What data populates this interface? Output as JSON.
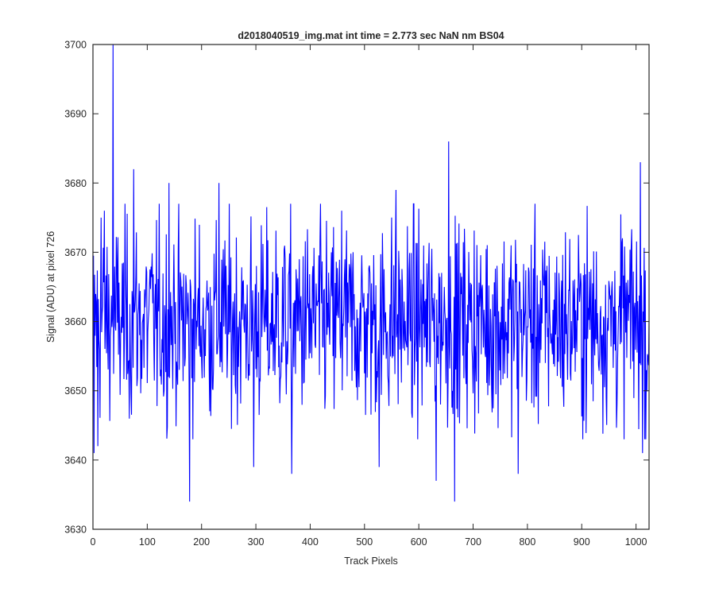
{
  "chart_data": {
    "type": "line",
    "title": "d2018040519_img.mat int time = 2.773 sec  NaN nm BS04",
    "xlabel": "Track Pixels",
    "ylabel": "Signal (ADU) at pixel 726",
    "xlim": [
      0,
      1024
    ],
    "ylim": [
      3630,
      3700
    ],
    "xticks": [
      0,
      100,
      200,
      300,
      400,
      500,
      600,
      700,
      800,
      900,
      1000
    ],
    "yticks": [
      3630,
      3640,
      3650,
      3660,
      3670,
      3680,
      3690,
      3700
    ],
    "grid": false,
    "series": [
      {
        "name": "",
        "color": "#0000ff",
        "n_points": 1024,
        "x_start": 1,
        "x_step": 1,
        "baseline": 3660,
        "noise_range": [
          3645,
          3675
        ],
        "annotated_points": [
          {
            "x": 2,
            "y": 3641
          },
          {
            "x": 9,
            "y": 3642
          },
          {
            "x": 15,
            "y": 3675
          },
          {
            "x": 21,
            "y": 3676
          },
          {
            "x": 37,
            "y": 3700
          },
          {
            "x": 75,
            "y": 3682
          },
          {
            "x": 140,
            "y": 3680
          },
          {
            "x": 178,
            "y": 3634
          },
          {
            "x": 232,
            "y": 3680
          },
          {
            "x": 296,
            "y": 3639
          },
          {
            "x": 366,
            "y": 3638
          },
          {
            "x": 458,
            "y": 3676
          },
          {
            "x": 527,
            "y": 3639
          },
          {
            "x": 558,
            "y": 3679
          },
          {
            "x": 632,
            "y": 3637
          },
          {
            "x": 655,
            "y": 3686
          },
          {
            "x": 666,
            "y": 3634
          },
          {
            "x": 783,
            "y": 3638
          },
          {
            "x": 1008,
            "y": 3683
          },
          {
            "x": 1012,
            "y": 3641
          },
          {
            "x": 1018,
            "y": 3643
          }
        ]
      }
    ]
  }
}
